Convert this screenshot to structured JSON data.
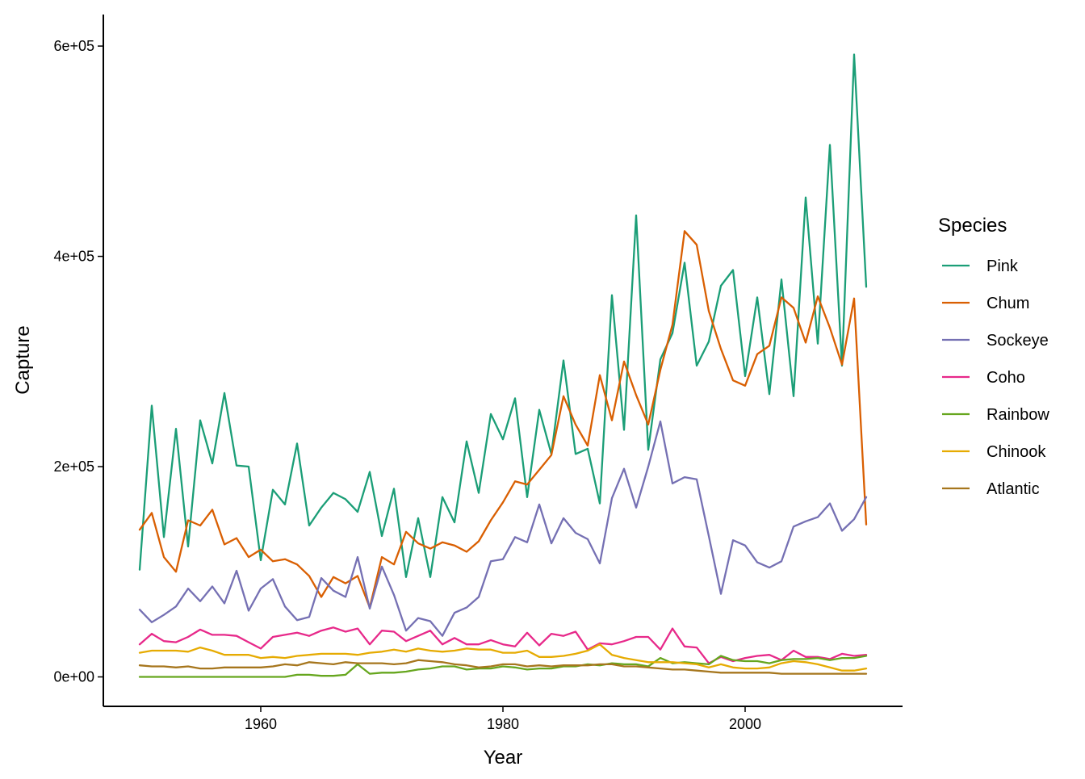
{
  "chart_data": {
    "type": "line",
    "title": "",
    "xlabel": "Year",
    "ylabel": "Capture",
    "xlim": [
      1947,
      2013
    ],
    "ylim": [
      -28000,
      630000
    ],
    "x_ticks": [
      1960,
      1980,
      2000
    ],
    "x_tick_labels": [
      "1960",
      "1980",
      "2000"
    ],
    "y_ticks": [
      0,
      200000,
      400000,
      600000
    ],
    "y_tick_labels": [
      "0e+00",
      "2e+05",
      "4e+05",
      "6e+05"
    ],
    "grid": false,
    "legend": {
      "title": "Species",
      "position": "right"
    },
    "x": [
      1950,
      1951,
      1952,
      1953,
      1954,
      1955,
      1956,
      1957,
      1958,
      1959,
      1960,
      1961,
      1962,
      1963,
      1964,
      1965,
      1966,
      1967,
      1968,
      1969,
      1970,
      1971,
      1972,
      1973,
      1974,
      1975,
      1976,
      1977,
      1978,
      1979,
      1980,
      1981,
      1982,
      1983,
      1984,
      1985,
      1986,
      1987,
      1988,
      1989,
      1990,
      1991,
      1992,
      1993,
      1994,
      1995,
      1996,
      1997,
      1998,
      1999,
      2000,
      2001,
      2002,
      2003,
      2004,
      2005,
      2006,
      2007,
      2008,
      2009,
      2010
    ],
    "series": [
      {
        "name": "Pink",
        "color": "#1b9e77",
        "values": [
          102000,
          258000,
          133000,
          236000,
          124000,
          244000,
          203000,
          270000,
          201000,
          200000,
          111000,
          178000,
          164000,
          222000,
          144000,
          161000,
          175000,
          169000,
          157000,
          195000,
          134000,
          179000,
          95000,
          151000,
          95000,
          171000,
          147000,
          224000,
          175000,
          250000,
          226000,
          265000,
          171000,
          254000,
          212000,
          301000,
          212000,
          217000,
          165000,
          363000,
          235000,
          439000,
          216000,
          302000,
          327000,
          394000,
          296000,
          319000,
          372000,
          387000,
          286000,
          361000,
          269000,
          378000,
          267000,
          456000,
          317000,
          506000,
          296000,
          592000,
          371000
        ]
      },
      {
        "name": "Chum",
        "color": "#d95f02",
        "values": [
          140000,
          156000,
          114000,
          100000,
          149000,
          144000,
          159000,
          126000,
          132000,
          114000,
          121000,
          110000,
          112000,
          107000,
          96000,
          76000,
          95000,
          89000,
          96000,
          66000,
          114000,
          107000,
          138000,
          127000,
          122000,
          128000,
          125000,
          119000,
          129000,
          149000,
          166000,
          186000,
          183000,
          197000,
          211000,
          267000,
          240000,
          220000,
          287000,
          244000,
          300000,
          268000,
          240000,
          292000,
          335000,
          424000,
          411000,
          348000,
          312000,
          282000,
          277000,
          307000,
          315000,
          361000,
          351000,
          318000,
          362000,
          332000,
          297000,
          360000,
          145000
        ]
      },
      {
        "name": "Sockeye",
        "color": "#7570b3",
        "values": [
          64000,
          52000,
          59000,
          67000,
          84000,
          72000,
          86000,
          70000,
          101000,
          63000,
          84000,
          93000,
          67000,
          54000,
          57000,
          94000,
          82000,
          76000,
          114000,
          65000,
          105000,
          78000,
          44000,
          56000,
          53000,
          39000,
          61000,
          66000,
          76000,
          110000,
          112000,
          133000,
          128000,
          164000,
          127000,
          151000,
          137000,
          131000,
          108000,
          170000,
          198000,
          161000,
          200000,
          243000,
          184000,
          190000,
          188000,
          134000,
          79000,
          130000,
          125000,
          109000,
          104000,
          110000,
          143000,
          148000,
          152000,
          165000,
          139000,
          150000,
          171000
        ]
      },
      {
        "name": "Coho",
        "color": "#e7298a",
        "values": [
          31000,
          41000,
          34000,
          33000,
          38000,
          45000,
          40000,
          40000,
          39000,
          33000,
          27000,
          38000,
          40000,
          42000,
          39000,
          44000,
          47000,
          43000,
          46000,
          31000,
          44000,
          43000,
          34000,
          39000,
          44000,
          31000,
          37000,
          31000,
          31000,
          35000,
          31000,
          29000,
          42000,
          30000,
          41000,
          39000,
          43000,
          26000,
          32000,
          31000,
          34000,
          38000,
          38000,
          26000,
          46000,
          29000,
          28000,
          13000,
          19000,
          15000,
          18000,
          20000,
          21000,
          16000,
          25000,
          19000,
          19000,
          17000,
          22000,
          20000,
          21000
        ]
      },
      {
        "name": "Rainbow",
        "color": "#66a61e",
        "values": [
          0,
          0,
          0,
          0,
          0,
          0,
          0,
          0,
          0,
          0,
          0,
          0,
          0,
          2000,
          2000,
          1000,
          1000,
          2000,
          12000,
          3000,
          4000,
          4000,
          5000,
          7000,
          8000,
          10000,
          10000,
          7000,
          8000,
          8000,
          10000,
          9000,
          7000,
          8000,
          8000,
          10000,
          10000,
          12000,
          11000,
          13000,
          12000,
          12000,
          10000,
          18000,
          13000,
          14000,
          13000,
          12000,
          20000,
          16000,
          15000,
          15000,
          13000,
          16000,
          17000,
          17000,
          18000,
          16000,
          18000,
          18000,
          20000
        ]
      },
      {
        "name": "Chinook",
        "color": "#e6ab02",
        "values": [
          23000,
          25000,
          25000,
          25000,
          24000,
          28000,
          25000,
          21000,
          21000,
          21000,
          18000,
          19000,
          18000,
          20000,
          21000,
          22000,
          22000,
          22000,
          21000,
          23000,
          24000,
          26000,
          24000,
          27000,
          25000,
          24000,
          25000,
          27000,
          26000,
          26000,
          23000,
          23000,
          25000,
          19000,
          19000,
          20000,
          22000,
          25000,
          31000,
          21000,
          18000,
          16000,
          14000,
          14000,
          14000,
          13000,
          12000,
          9000,
          12000,
          9000,
          8000,
          8000,
          9000,
          13000,
          15000,
          14000,
          12000,
          9000,
          6000,
          6000,
          8000
        ]
      },
      {
        "name": "Atlantic",
        "color": "#a6761d",
        "values": [
          11000,
          10000,
          10000,
          9000,
          10000,
          8000,
          8000,
          9000,
          9000,
          9000,
          9000,
          10000,
          12000,
          11000,
          14000,
          13000,
          12000,
          14000,
          13000,
          13000,
          13000,
          12000,
          13000,
          16000,
          15000,
          14000,
          12000,
          11000,
          9000,
          10000,
          12000,
          12000,
          10000,
          11000,
          10000,
          11000,
          11000,
          11000,
          12000,
          12000,
          10000,
          10000,
          9000,
          8000,
          7000,
          7000,
          6000,
          5000,
          4000,
          4000,
          4000,
          4000,
          4000,
          3000,
          3000,
          3000,
          3000,
          3000,
          3000,
          3000,
          3000
        ]
      }
    ]
  }
}
